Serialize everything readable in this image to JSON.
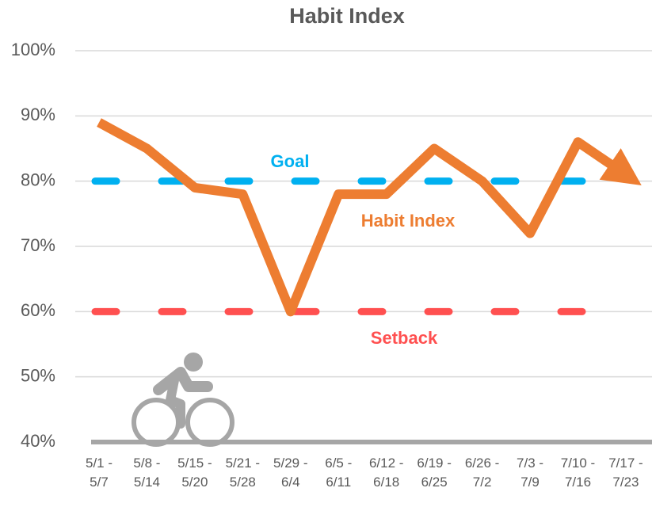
{
  "chart_data": {
    "type": "line",
    "title": "Habit Index",
    "categories": [
      "5/1 - 5/7",
      "5/8 - 5/14",
      "5/15 - 5/20",
      "5/21 - 5/28",
      "5/29 - 6/4",
      "6/5 - 6/11",
      "6/12 - 6/18",
      "6/19 - 6/25",
      "6/26 - 7/2",
      "7/3 - 7/9",
      "7/10 - 7/16",
      "7/17 - 7/23"
    ],
    "series": [
      {
        "name": "Goal",
        "color": "#00b0f0",
        "values": [
          80,
          80,
          80,
          80,
          80,
          80,
          80,
          80,
          80,
          80,
          80,
          null
        ]
      },
      {
        "name": "Setback",
        "color": "#ff5050",
        "values": [
          60,
          60,
          60,
          60,
          60,
          60,
          60,
          60,
          60,
          60,
          60,
          null
        ]
      },
      {
        "name": "Habit Index",
        "color": "#ed7d31",
        "values": [
          89,
          85,
          79,
          78,
          60,
          78,
          78,
          85,
          80,
          72,
          86,
          81
        ]
      }
    ],
    "ylim": [
      40,
      100
    ],
    "yticks": [
      {
        "value": 40,
        "label": "40%"
      },
      {
        "value": 50,
        "label": "50%"
      },
      {
        "value": 60,
        "label": "60%"
      },
      {
        "value": 70,
        "label": "70%"
      },
      {
        "value": 80,
        "label": "80%"
      },
      {
        "value": 90,
        "label": "90%"
      },
      {
        "value": 100,
        "label": "100%"
      }
    ],
    "grid": true
  }
}
